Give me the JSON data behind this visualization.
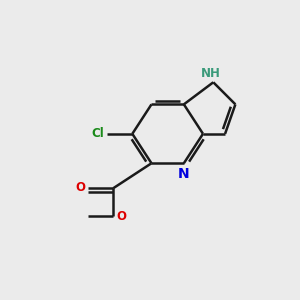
{
  "bg_color": "#ebebeb",
  "bond_color": "#1a1a1a",
  "bond_width": 1.8,
  "fig_size": [
    3.0,
    3.0
  ],
  "dpi": 100,
  "xlim": [
    0,
    10
  ],
  "ylim": [
    0,
    10
  ],
  "N_py_color": "#0000dd",
  "NH_color": "#3a9a7a",
  "Cl_color": "#1a8a1a",
  "O_color": "#dd0000",
  "C_color": "#1a1a1a"
}
